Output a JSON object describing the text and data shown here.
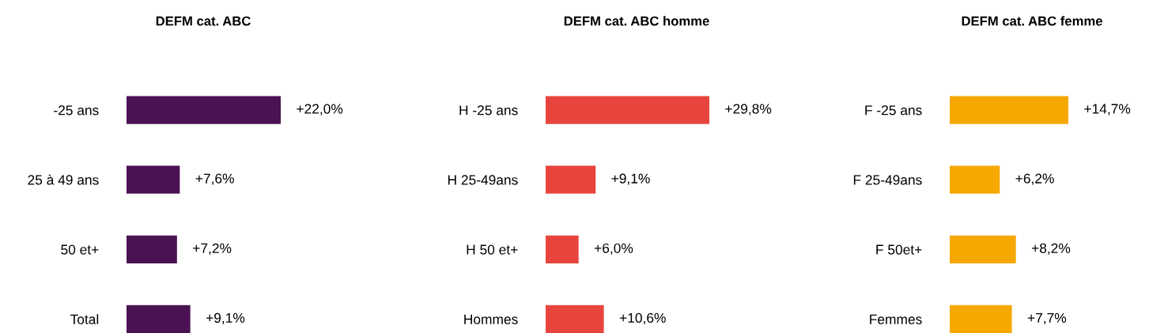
{
  "chart_data": [
    {
      "type": "bar",
      "orientation": "horizontal",
      "title": "DEFM cat. ABC",
      "categories": [
        "-25 ans",
        "25 à 49 ans",
        "50 et+",
        "Total"
      ],
      "values": [
        22.0,
        7.6,
        7.2,
        9.1
      ],
      "color": "#4a1252",
      "value_labels": [
        "+22,0%",
        "+7,6%",
        "+7,2%",
        "+9,1%"
      ],
      "tick_labels": "y"
    },
    {
      "type": "bar",
      "orientation": "horizontal",
      "title": "DEFM cat. ABC homme",
      "categories": [
        "H -25 ans",
        "H 25-49ans",
        "H 50 et+",
        "Hommes"
      ],
      "values": [
        29.8,
        9.1,
        6.0,
        10.6
      ],
      "color": "#e8443e",
      "value_labels": [
        "+29,8%",
        "+9,1%",
        "+6,0%",
        "+10,6%"
      ],
      "tick_labels": "y"
    },
    {
      "type": "bar",
      "orientation": "horizontal",
      "title": "DEFM cat. ABC femme",
      "categories": [
        "F -25 ans",
        "F 25-49ans",
        "F 50et+",
        "Femmes"
      ],
      "values": [
        14.7,
        6.2,
        8.2,
        7.7
      ],
      "color": "#f6a800",
      "value_labels": [
        "+14,7%",
        "+6,2%",
        "+8,2%",
        "+7,7%"
      ],
      "tick_labels": "y"
    }
  ]
}
